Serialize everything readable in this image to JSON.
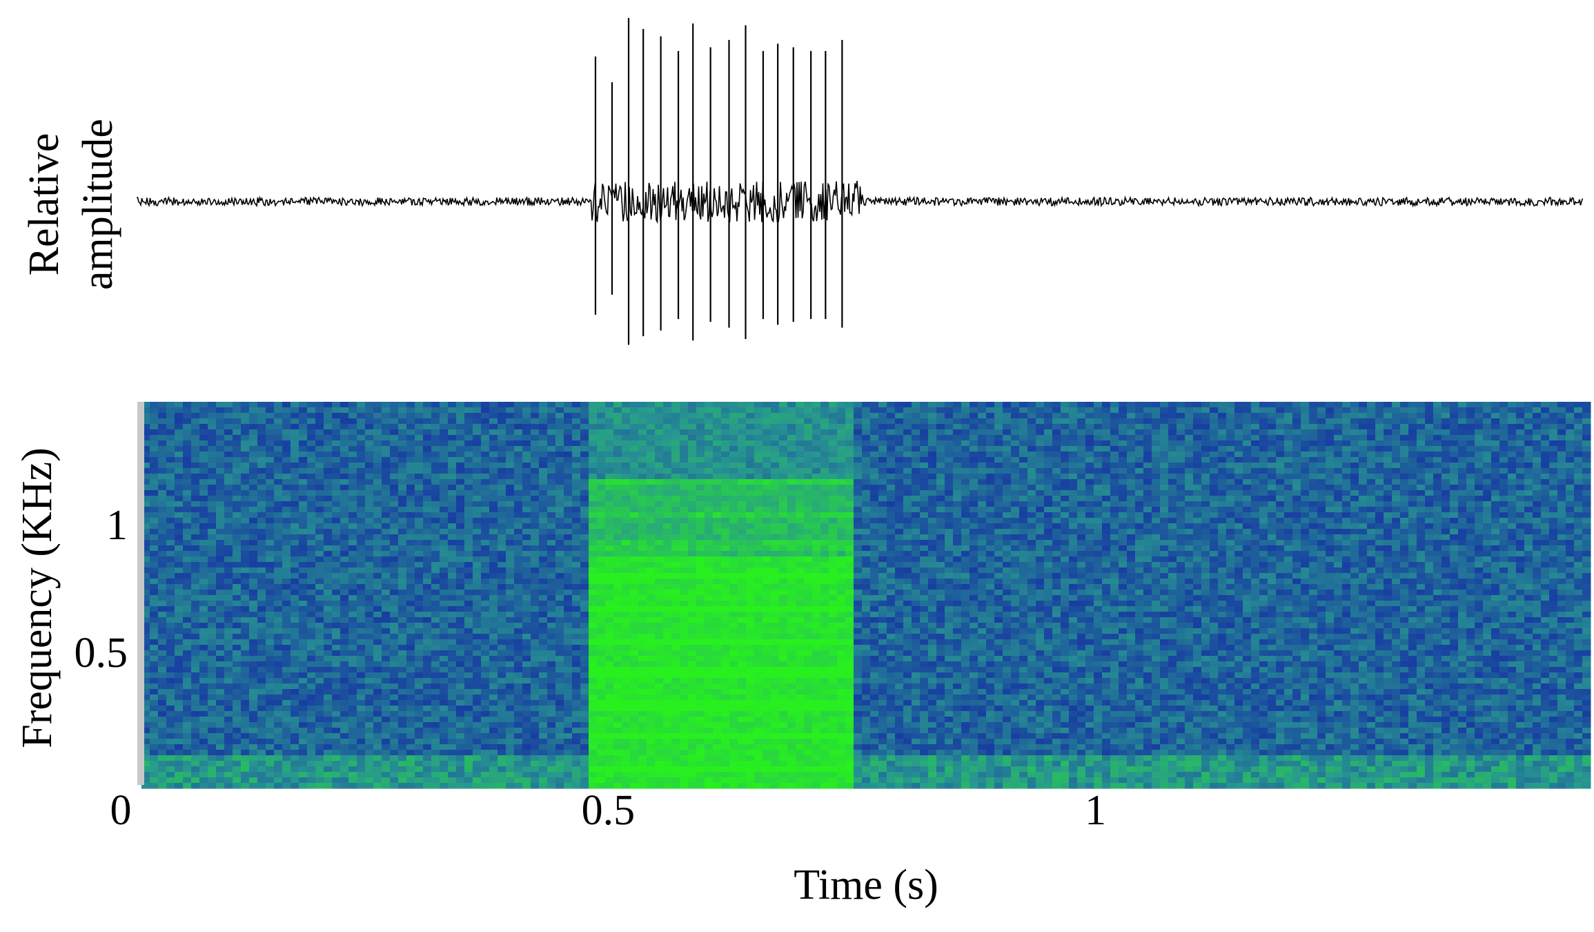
{
  "chart_data": [
    {
      "type": "line",
      "y_label": [
        "Relative",
        "amplitude"
      ],
      "x": [
        0.487,
        0.504,
        0.521,
        0.536,
        0.554,
        0.572,
        0.587,
        0.605,
        0.624,
        0.641,
        0.659,
        0.674,
        0.69,
        0.708,
        0.723,
        0.74
      ],
      "values": [
        0.79,
        0.65,
        1,
        0.94,
        0.9,
        0.82,
        0.97,
        0.84,
        0.88,
        0.96,
        0.82,
        0.86,
        0.84,
        0.82,
        0.82,
        0.88
      ],
      "color": "#000000",
      "xlim": [
        0,
        1.5
      ]
    },
    {
      "type": "heatmap",
      "x_label": "Time (s)",
      "y_label": "Frequency (KHz)",
      "xlim": [
        0,
        1.5
      ],
      "ylim": [
        0,
        1.5
      ],
      "xticks": [
        0,
        0.5,
        1
      ],
      "yticks": [
        0.5,
        1
      ]
    }
  ]
}
